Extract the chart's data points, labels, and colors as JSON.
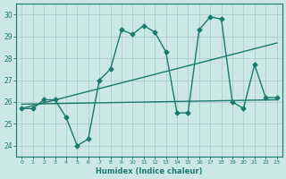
{
  "xlabel": "Humidex (Indice chaleur)",
  "bg_color": "#cce8e4",
  "grid_color": "#aacfcb",
  "line_color": "#1a7a6e",
  "xlim": [
    -0.5,
    23.5
  ],
  "ylim": [
    23.5,
    30.5
  ],
  "yticks": [
    24,
    25,
    26,
    27,
    28,
    29,
    30
  ],
  "xtick_labels": [
    "0",
    "1",
    "2",
    "3",
    "4",
    "5",
    "6",
    "7",
    "8",
    "9",
    "10",
    "11",
    "12",
    "13",
    "14",
    "15",
    "16",
    "17",
    "18",
    "19",
    "20",
    "21",
    "22",
    "23"
  ],
  "series1_x": [
    0,
    1,
    2,
    3,
    4,
    5,
    6,
    7,
    8,
    9,
    10,
    11,
    12,
    13,
    14,
    15,
    16,
    17,
    18,
    19,
    20,
    21,
    22,
    23
  ],
  "series1_y": [
    25.7,
    25.7,
    26.1,
    26.1,
    25.3,
    24.0,
    24.3,
    27.0,
    27.5,
    29.3,
    29.1,
    29.5,
    29.2,
    28.3,
    25.5,
    25.5,
    29.3,
    29.9,
    29.8,
    26.0,
    25.7,
    27.7,
    26.2,
    26.2
  ],
  "series2_x": [
    0,
    23
  ],
  "series2_y": [
    25.7,
    28.7
  ],
  "series3_x": [
    0,
    23
  ],
  "series3_y": [
    25.9,
    26.1
  ],
  "marker": "D",
  "marker_size": 2.5,
  "line_width": 1.0
}
